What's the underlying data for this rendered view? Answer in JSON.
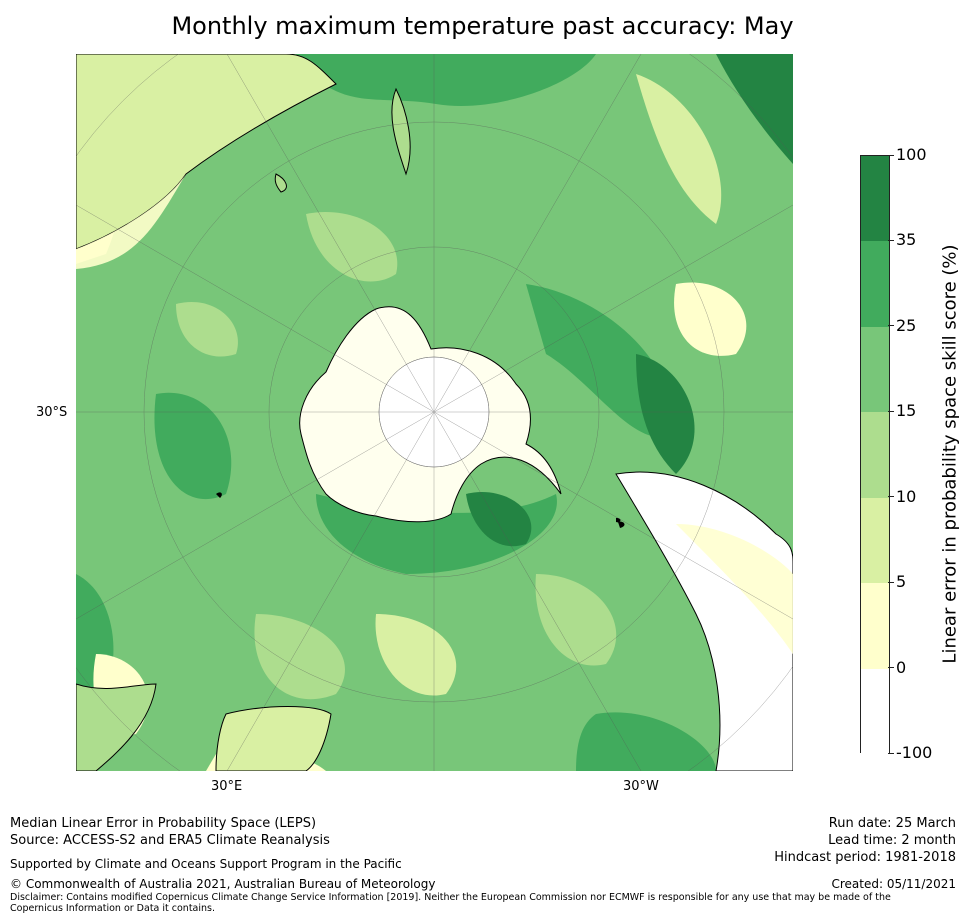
{
  "title": "Monthly maximum temperature past accuracy: May",
  "map": {
    "projection": "south-polar-stereographic",
    "labels": {
      "left": "30°S",
      "lon_east": "30°E",
      "lon_west": "30°W"
    }
  },
  "colorbar": {
    "title": "Linear error in probability space skill score (%)",
    "ticks": [
      "100",
      "35",
      "25",
      "15",
      "10",
      "5",
      "0",
      "-100"
    ],
    "segments": [
      {
        "from": "35",
        "to": "100",
        "color": "#238443"
      },
      {
        "from": "25",
        "to": "35",
        "color": "#41ab5d"
      },
      {
        "from": "15",
        "to": "25",
        "color": "#78c679"
      },
      {
        "from": "10",
        "to": "15",
        "color": "#addd8e"
      },
      {
        "from": "5",
        "to": "10",
        "color": "#d9f0a3"
      },
      {
        "from": "0",
        "to": "5",
        "color": "#ffffcc"
      },
      {
        "from": "-100",
        "to": "0",
        "color": "#ffffff"
      }
    ]
  },
  "footer": {
    "line1": "Median Linear Error in Probability Space (LEPS)",
    "line2": "Source: ACCESS-S2 and ERA5 Climate Reanalysis",
    "support": "Supported by Climate and Oceans Support Program in the Pacific",
    "copyright": "© Commonwealth of Australia 2021, Australian Bureau of Meteorology",
    "disclaimer": "Disclaimer: Contains modified Copernicus Climate Change Service Information [2019]. Neither the European Commission nor ECMWF is responsible for any use that may be made of the Copernicus Information or Data it contains.",
    "run_date": "Run date: 25 March",
    "lead_time": "Lead time: 2 month",
    "hindcast": "Hindcast period: 1981-2018",
    "created": "Created: 05/11/2021"
  }
}
